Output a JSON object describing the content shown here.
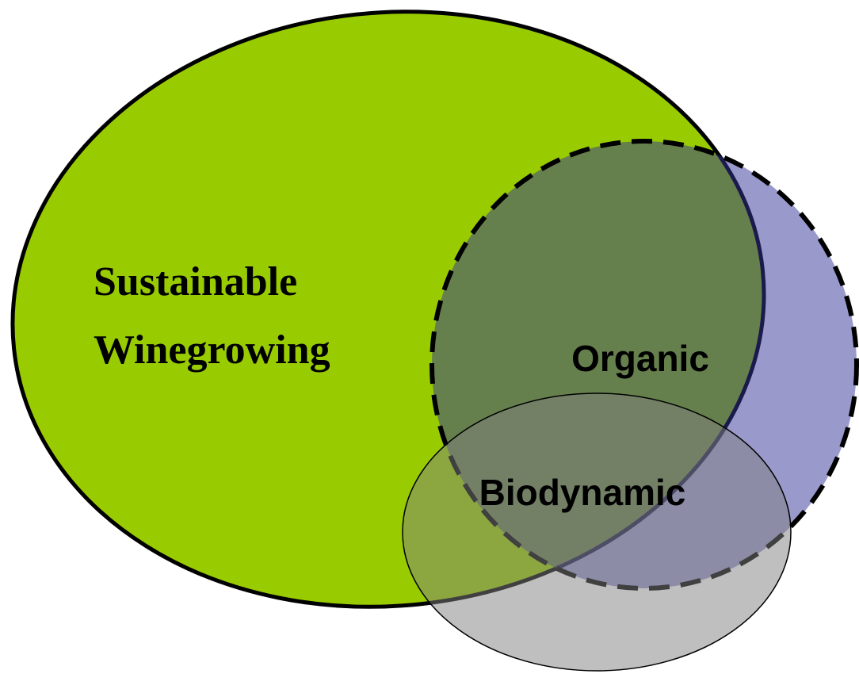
{
  "sets": [
    {
      "label_lines": [
        "Sustainable",
        "Winegrowing"
      ]
    },
    {
      "label_lines": [
        "Organic"
      ]
    },
    {
      "label_lines": [
        "Biodynamic"
      ]
    }
  ]
}
